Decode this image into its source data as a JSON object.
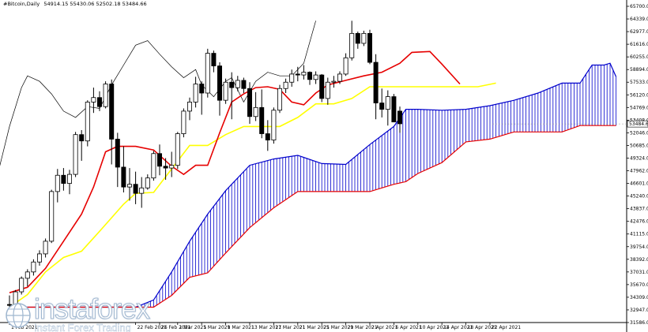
{
  "header": {
    "symbol": "#Bitcoin,Daily",
    "ohlc": "54914.15 55430.06 52502.18 53484.66"
  },
  "logo": {
    "brand": "instaforex",
    "tagline": "Instant Forex Trading"
  },
  "chart_data": {
    "type": "candlestick-ichimoku",
    "ylim": [
      31500,
      66500
    ],
    "y_ticks": [
      "65700.00",
      "64339.00",
      "62977.00",
      "61616.00",
      "60255.00",
      "58894.00",
      "57533.00",
      "56120.00",
      "54769.00",
      "53408.00",
      "52046.00",
      "50685.00",
      "49324.00",
      "47962.00",
      "46601.00",
      "45240.00",
      "43837.00",
      "42476.00",
      "41115.00",
      "39754.00",
      "38392.00",
      "37031.00",
      "35670.00",
      "34309.00",
      "32947.00",
      "31586.00"
    ],
    "current_price": "53484.66",
    "x_ticks": [
      "1 Feb 2021",
      "22 Feb 2021",
      "26 Feb 2021",
      "1 Mar 2021",
      "5 Mar 2021",
      "9 Mar 2021",
      "13 Mar 2021",
      "17 Mar 2021",
      "21 Mar 2021",
      "25 Mar 2021",
      "29 Mar 2021",
      "2 Apr 2021",
      "6 Apr 2021",
      "10 Apr 2021",
      "14 Apr 2021",
      "18 Apr 2021",
      "22 Apr 2021"
    ],
    "x_tick_index": [
      0,
      21,
      25,
      28,
      32,
      36,
      40,
      44,
      48,
      52,
      56,
      60,
      64,
      68,
      72,
      76,
      80
    ],
    "candles": [
      [
        33500,
        34500,
        32800,
        33400
      ],
      [
        33400,
        35100,
        33000,
        34900
      ],
      [
        34900,
        36600,
        34600,
        36400
      ],
      [
        36400,
        37400,
        35500,
        37100
      ],
      [
        37100,
        38500,
        36700,
        38200
      ],
      [
        38200,
        39500,
        37800,
        39100
      ],
      [
        39100,
        40800,
        38700,
        40500
      ],
      [
        40500,
        46200,
        40300,
        46000
      ],
      [
        46000,
        48500,
        44800,
        47800
      ],
      [
        47800,
        48600,
        46100,
        46900
      ],
      [
        46900,
        48400,
        45700,
        47900
      ],
      [
        47900,
        52600,
        47600,
        52300
      ],
      [
        52300,
        52800,
        49400,
        51600
      ],
      [
        51600,
        56100,
        51000,
        55900
      ],
      [
        55900,
        57500,
        54700,
        56400
      ],
      [
        56400,
        57100,
        54900,
        55400
      ],
      [
        55400,
        58200,
        55200,
        57900
      ],
      [
        57900,
        58400,
        49000,
        51800
      ],
      [
        51800,
        52500,
        46500,
        48700
      ],
      [
        48700,
        51000,
        45900,
        46500
      ],
      [
        46500,
        48600,
        45000,
        46800
      ],
      [
        46800,
        48200,
        44600,
        45800
      ],
      [
        45800,
        47600,
        44200,
        46400
      ],
      [
        46400,
        47900,
        46200,
        47500
      ],
      [
        47500,
        50500,
        47200,
        50200
      ],
      [
        50200,
        51200,
        47800,
        48800
      ],
      [
        48800,
        49700,
        47300,
        48600
      ],
      [
        48600,
        50400,
        47600,
        48900
      ],
      [
        48900,
        52600,
        48500,
        52400
      ],
      [
        52400,
        55200,
        52000,
        54900
      ],
      [
        54900,
        56400,
        53900,
        55900
      ],
      [
        55900,
        58700,
        55300,
        57900
      ],
      [
        57900,
        58200,
        54500,
        56900
      ],
      [
        56900,
        61800,
        56400,
        61300
      ],
      [
        61300,
        61600,
        59200,
        59900
      ],
      [
        59900,
        60300,
        54400,
        56100
      ],
      [
        56100,
        58500,
        55700,
        58100
      ],
      [
        58100,
        59200,
        54000,
        57500
      ],
      [
        57500,
        58800,
        57100,
        58300
      ],
      [
        58300,
        58600,
        56900,
        57400
      ],
      [
        57400,
        58100,
        53500,
        54300
      ],
      [
        54300,
        57000,
        53800,
        55300
      ],
      [
        55300,
        57300,
        51900,
        52400
      ],
      [
        52400,
        53900,
        50500,
        51700
      ],
      [
        51700,
        55300,
        51300,
        55000
      ],
      [
        55000,
        57800,
        54700,
        57400
      ],
      [
        57400,
        58500,
        56900,
        58100
      ],
      [
        58100,
        59500,
        57600,
        59000
      ],
      [
        59000,
        59800,
        58200,
        58900
      ],
      [
        58900,
        60000,
        58400,
        59200
      ],
      [
        59200,
        59300,
        57800,
        58400
      ],
      [
        58400,
        59300,
        57900,
        58900
      ],
      [
        58900,
        59000,
        55900,
        56300
      ],
      [
        56300,
        58600,
        55600,
        58100
      ],
      [
        58100,
        58800,
        57500,
        58200
      ],
      [
        58200,
        59300,
        57900,
        59000
      ],
      [
        59000,
        61300,
        58800,
        60800
      ],
      [
        60800,
        64900,
        60500,
        63500
      ],
      [
        63500,
        63700,
        61800,
        62400
      ],
      [
        62400,
        63800,
        62100,
        63500
      ],
      [
        63500,
        63900,
        60100,
        60300
      ],
      [
        60300,
        61200,
        54000,
        55800
      ],
      [
        55800,
        57400,
        54200,
        55100
      ],
      [
        55100,
        57200,
        53300,
        56500
      ],
      [
        56500,
        56800,
        53700,
        53700
      ],
      [
        54900,
        55400,
        52500,
        53500
      ]
    ],
    "candle_start_index": 0,
    "tenkan": [
      [
        0,
        34800
      ],
      [
        3,
        35400
      ],
      [
        6,
        37500
      ],
      [
        9,
        40500
      ],
      [
        12,
        43500
      ],
      [
        14,
        46500
      ],
      [
        16,
        50400
      ],
      [
        18,
        51000
      ],
      [
        21,
        51000
      ],
      [
        24,
        50600
      ],
      [
        27,
        48800
      ],
      [
        29,
        47900
      ],
      [
        31,
        48900
      ],
      [
        33,
        48900
      ],
      [
        35,
        52500
      ],
      [
        37,
        55900
      ],
      [
        39,
        56800
      ],
      [
        41,
        57500
      ],
      [
        43,
        57600
      ],
      [
        45,
        57300
      ],
      [
        47,
        55900
      ],
      [
        49,
        55600
      ],
      [
        51,
        56900
      ],
      [
        53,
        57800
      ],
      [
        56,
        58300
      ],
      [
        59,
        58800
      ],
      [
        62,
        59200
      ],
      [
        65,
        60200
      ],
      [
        67,
        61400
      ],
      [
        70,
        61500
      ],
      [
        72,
        60100
      ],
      [
        75,
        57900
      ]
    ],
    "kijun": [
      [
        0,
        33200
      ],
      [
        3,
        34600
      ],
      [
        6,
        37100
      ],
      [
        9,
        38700
      ],
      [
        12,
        39400
      ],
      [
        15,
        41600
      ],
      [
        17,
        43100
      ],
      [
        19,
        44600
      ],
      [
        21,
        45800
      ],
      [
        24,
        45900
      ],
      [
        27,
        48500
      ],
      [
        30,
        51100
      ],
      [
        33,
        51100
      ],
      [
        36,
        52300
      ],
      [
        39,
        53200
      ],
      [
        42,
        53200
      ],
      [
        45,
        53200
      ],
      [
        48,
        54200
      ],
      [
        51,
        55700
      ],
      [
        54,
        55700
      ],
      [
        57,
        56300
      ],
      [
        60,
        57600
      ],
      [
        63,
        57600
      ],
      [
        66,
        57600
      ],
      [
        69,
        57600
      ],
      [
        72,
        57600
      ],
      [
        75,
        57600
      ],
      [
        78,
        57600
      ],
      [
        81,
        58000
      ]
    ],
    "chikou": [
      [
        -8,
        45400
      ],
      [
        -6,
        46700
      ],
      [
        -4,
        46000
      ],
      [
        -2,
        47800
      ],
      [
        0,
        53200
      ],
      [
        2,
        57500
      ],
      [
        3,
        58800
      ],
      [
        5,
        58200
      ],
      [
        7,
        56800
      ],
      [
        9,
        54900
      ],
      [
        11,
        54200
      ],
      [
        13,
        55400
      ],
      [
        15,
        55200
      ],
      [
        17,
        57800
      ],
      [
        19,
        60000
      ],
      [
        21,
        62200
      ],
      [
        23,
        62700
      ],
      [
        25,
        61200
      ],
      [
        27,
        59800
      ],
      [
        29,
        58600
      ],
      [
        31,
        59500
      ],
      [
        32,
        57800
      ],
      [
        34,
        56500
      ],
      [
        36,
        58200
      ],
      [
        37,
        58600
      ],
      [
        39,
        55900
      ],
      [
        41,
        58200
      ],
      [
        43,
        59200
      ],
      [
        45,
        58800
      ],
      [
        47,
        58800
      ],
      [
        49,
        60200
      ],
      [
        51,
        64900
      ]
    ],
    "span_a": [
      [
        0,
        33200
      ],
      [
        12,
        33200
      ],
      [
        21,
        33200
      ],
      [
        24,
        34000
      ],
      [
        27,
        37100
      ],
      [
        30,
        40500
      ],
      [
        33,
        43500
      ],
      [
        36,
        46100
      ],
      [
        40,
        48900
      ],
      [
        44,
        49600
      ],
      [
        48,
        50000
      ],
      [
        52,
        49100
      ],
      [
        56,
        49000
      ],
      [
        60,
        51200
      ],
      [
        64,
        53200
      ],
      [
        66,
        55100
      ],
      [
        68,
        55100
      ],
      [
        72,
        55000
      ],
      [
        76,
        55100
      ],
      [
        80,
        55500
      ],
      [
        84,
        56100
      ],
      [
        88,
        56900
      ],
      [
        92,
        58000
      ],
      [
        95,
        58000
      ],
      [
        97,
        60000
      ],
      [
        99,
        60000
      ],
      [
        100,
        60200
      ],
      [
        101,
        58700
      ]
    ],
    "span_b": [
      [
        0,
        33200
      ],
      [
        12,
        33200
      ],
      [
        21,
        33200
      ],
      [
        24,
        33200
      ],
      [
        27,
        34500
      ],
      [
        30,
        36500
      ],
      [
        33,
        37000
      ],
      [
        36,
        39200
      ],
      [
        40,
        42000
      ],
      [
        44,
        44200
      ],
      [
        48,
        46000
      ],
      [
        52,
        46000
      ],
      [
        56,
        46000
      ],
      [
        60,
        46000
      ],
      [
        64,
        46800
      ],
      [
        66,
        47100
      ],
      [
        68,
        48000
      ],
      [
        72,
        49200
      ],
      [
        76,
        51500
      ],
      [
        80,
        51800
      ],
      [
        84,
        52600
      ],
      [
        88,
        52600
      ],
      [
        92,
        52600
      ],
      [
        95,
        53300
      ],
      [
        97,
        53300
      ],
      [
        99,
        53300
      ],
      [
        101,
        53300
      ]
    ]
  },
  "colors": {
    "candle": "#000000",
    "tenkan": "#e60000",
    "kijun": "#ffff00",
    "chikou": "#000000",
    "cloud_bull": "#0000cc",
    "cloud_bear": "#e60000",
    "axis": "#000000",
    "price_label_bg": "#ffffff"
  }
}
